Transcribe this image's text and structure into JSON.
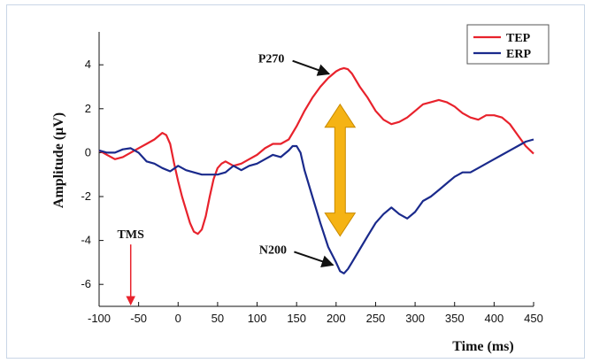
{
  "chart_data": {
    "type": "line",
    "xlabel": "Time (ms)",
    "ylabel": "Amplitude (μV)",
    "xlim": [
      -100,
      450
    ],
    "ylim": [
      -7,
      5.5
    ],
    "xticks": [
      "-100",
      "-50",
      "0",
      "50",
      "100",
      "150",
      "200",
      "250",
      "300",
      "350",
      "400",
      "450"
    ],
    "yticks": [
      "4",
      "2",
      "0",
      "-2",
      "-4",
      "-6"
    ],
    "legend_position": "top-right",
    "grid": false,
    "series": [
      {
        "name": "TEP",
        "color": "#e8222c",
        "x": [
          -100,
          -90,
          -80,
          -70,
          -60,
          -50,
          -40,
          -30,
          -20,
          -15,
          -10,
          -5,
          0,
          5,
          10,
          15,
          20,
          25,
          30,
          35,
          40,
          45,
          50,
          55,
          60,
          65,
          70,
          80,
          90,
          100,
          110,
          120,
          130,
          140,
          150,
          160,
          170,
          180,
          190,
          200,
          205,
          210,
          215,
          220,
          230,
          240,
          250,
          260,
          270,
          280,
          290,
          300,
          310,
          320,
          330,
          340,
          350,
          360,
          370,
          380,
          390,
          400,
          410,
          420,
          430,
          440,
          450
        ],
        "y": [
          0.1,
          -0.1,
          -0.3,
          -0.2,
          0.0,
          0.2,
          0.4,
          0.6,
          0.9,
          0.8,
          0.4,
          -0.5,
          -1.3,
          -2.0,
          -2.6,
          -3.2,
          -3.6,
          -3.7,
          -3.5,
          -2.9,
          -2.0,
          -1.2,
          -0.7,
          -0.5,
          -0.4,
          -0.5,
          -0.6,
          -0.5,
          -0.3,
          -0.1,
          0.2,
          0.4,
          0.4,
          0.6,
          1.2,
          1.9,
          2.5,
          3.0,
          3.4,
          3.7,
          3.8,
          3.85,
          3.8,
          3.6,
          3.0,
          2.5,
          1.9,
          1.5,
          1.3,
          1.4,
          1.6,
          1.9,
          2.2,
          2.3,
          2.4,
          2.3,
          2.1,
          1.8,
          1.6,
          1.5,
          1.7,
          1.7,
          1.6,
          1.3,
          0.8,
          0.3,
          -0.05
        ]
      },
      {
        "name": "ERP",
        "color": "#1a2a8c",
        "x": [
          -100,
          -90,
          -80,
          -70,
          -60,
          -50,
          -40,
          -30,
          -20,
          -10,
          0,
          10,
          20,
          30,
          40,
          50,
          60,
          70,
          80,
          90,
          100,
          110,
          120,
          130,
          140,
          145,
          150,
          155,
          160,
          170,
          180,
          190,
          200,
          205,
          210,
          215,
          220,
          230,
          240,
          250,
          260,
          270,
          280,
          290,
          300,
          310,
          320,
          330,
          340,
          350,
          360,
          370,
          380,
          390,
          400,
          410,
          420,
          430,
          440,
          450
        ],
        "y": [
          0.1,
          0.0,
          0.0,
          0.15,
          0.2,
          0.0,
          -0.4,
          -0.5,
          -0.7,
          -0.85,
          -0.6,
          -0.8,
          -0.9,
          -1.0,
          -1.0,
          -1.0,
          -0.9,
          -0.6,
          -0.8,
          -0.6,
          -0.5,
          -0.3,
          -0.1,
          -0.2,
          0.1,
          0.3,
          0.3,
          0.0,
          -0.8,
          -2.0,
          -3.2,
          -4.3,
          -5.0,
          -5.4,
          -5.5,
          -5.3,
          -5.0,
          -4.4,
          -3.8,
          -3.2,
          -2.8,
          -2.5,
          -2.8,
          -3.0,
          -2.7,
          -2.2,
          -2.0,
          -1.7,
          -1.4,
          -1.1,
          -0.9,
          -0.9,
          -0.7,
          -0.5,
          -0.3,
          -0.1,
          0.1,
          0.3,
          0.5,
          0.6
        ]
      }
    ],
    "annotations": [
      {
        "name": "p270",
        "text": "P270",
        "x": 200,
        "y": 3.75,
        "text_x": 118,
        "text_y": 4.1
      },
      {
        "name": "n200",
        "text": "N200",
        "x": 205,
        "y": -5.2,
        "text_x": 120,
        "text_y": -4.6
      },
      {
        "name": "tms",
        "text": "TMS",
        "x": -60,
        "y": -7.0,
        "text_x": -60,
        "text_y": -3.9
      }
    ],
    "double_arrow": {
      "x": 205,
      "y_top": 2.2,
      "y_bottom": -3.8,
      "color": "#f5b314"
    }
  }
}
